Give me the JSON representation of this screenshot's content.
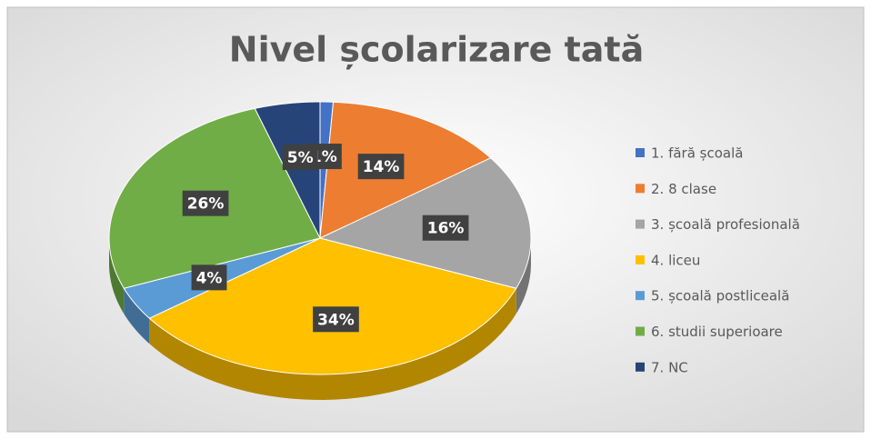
{
  "chart_data": {
    "type": "pie3d",
    "title": "Nivel școlarizare tată",
    "categories": [
      "1. fără școală",
      "2. 8 clase",
      "3. școală profesională",
      "4. liceu",
      "5. școală postliceală",
      "6. studii superioare",
      "7. NC"
    ],
    "values": [
      1,
      14,
      16,
      34,
      4,
      26,
      5
    ],
    "value_labels": [
      "1%",
      "14%",
      "16%",
      "34%",
      "4%",
      "26%",
      "5%"
    ],
    "colors": [
      "#4472c4",
      "#ed7d31",
      "#a5a5a5",
      "#ffc000",
      "#5b9bd5",
      "#70ad47",
      "#264478"
    ],
    "legend": "right"
  }
}
